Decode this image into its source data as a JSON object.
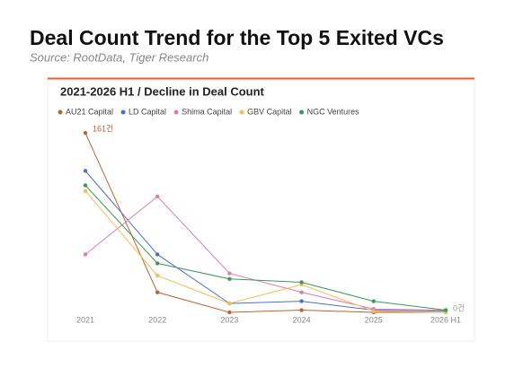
{
  "title": "Deal Count Trend for the Top 5 Exited VCs",
  "source": "Source: RootData, Tiger Research",
  "chart_data": {
    "type": "line",
    "title": "2021-2026 H1 / Decline in Deal Count",
    "categories": [
      "2021",
      "2022",
      "2023",
      "2024",
      "2025",
      "2026 H1"
    ],
    "ylim": [
      0,
      170
    ],
    "series": [
      {
        "name": "AU21 Capital",
        "color": "#c0622b",
        "values": [
          161,
          18,
          0,
          2,
          0,
          0
        ],
        "value_labels": [
          "161건",
          null,
          null,
          null,
          null,
          "0건"
        ]
      },
      {
        "name": "LD Capital",
        "color": "#4a6fd1",
        "values": [
          127,
          52,
          8,
          10,
          2,
          1
        ]
      },
      {
        "name": "Shima Capital",
        "color": "#e07bb0",
        "values": [
          52,
          104,
          35,
          18,
          3,
          2
        ]
      },
      {
        "name": "GBV Capital",
        "color": "#f0c050",
        "values": [
          109,
          33,
          8,
          25,
          1,
          0
        ]
      },
      {
        "name": "NGC Ventures",
        "color": "#3a9a5a",
        "values": [
          114,
          44,
          30,
          27,
          10,
          2
        ]
      }
    ]
  }
}
